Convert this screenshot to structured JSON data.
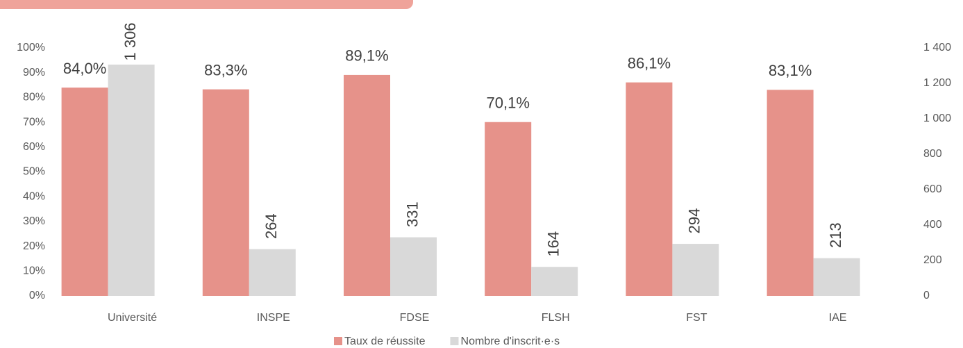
{
  "chart_data": {
    "type": "bar",
    "categories": [
      "Université",
      "INSPE",
      "FDSE",
      "FLSH",
      "FST",
      "IAE"
    ],
    "series": [
      {
        "name": "Taux de réussite",
        "color": "#e6928a",
        "values": [
          84.0,
          83.3,
          89.1,
          70.1,
          86.1,
          83.1
        ],
        "value_labels": [
          "84,0%",
          "83,3%",
          "89,1%",
          "70,1%",
          "86,1%",
          "83,1%"
        ]
      },
      {
        "name": "Nombre d'inscrit·e·s",
        "color": "#d9d9d9",
        "axis": "y2",
        "values": [
          1306,
          264,
          331,
          164,
          294,
          213
        ],
        "value_labels": [
          "1 306",
          "264",
          "331",
          "164",
          "294",
          "213"
        ]
      }
    ],
    "ylim": [
      0,
      100
    ],
    "yticks": [
      {
        "value": 0,
        "label": "0%"
      },
      {
        "value": 10,
        "label": "10%"
      },
      {
        "value": 20,
        "label": "20%"
      },
      {
        "value": 30,
        "label": "30%"
      },
      {
        "value": 40,
        "label": "40%"
      },
      {
        "value": 50,
        "label": "50%"
      },
      {
        "value": 60,
        "label": "60%"
      },
      {
        "value": 70,
        "label": "70%"
      },
      {
        "value": 80,
        "label": "80%"
      },
      {
        "value": 90,
        "label": "90%"
      },
      {
        "value": 100,
        "label": "100%"
      }
    ],
    "y2lim": [
      0,
      1400
    ],
    "y2ticks": [
      0,
      200,
      400,
      600,
      800,
      {
        "value": 1000,
        "label": "1 000"
      },
      {
        "value": 1200,
        "label": "1 200"
      },
      {
        "value": 1400,
        "label": "1 400"
      }
    ],
    "legend": "bottom"
  }
}
